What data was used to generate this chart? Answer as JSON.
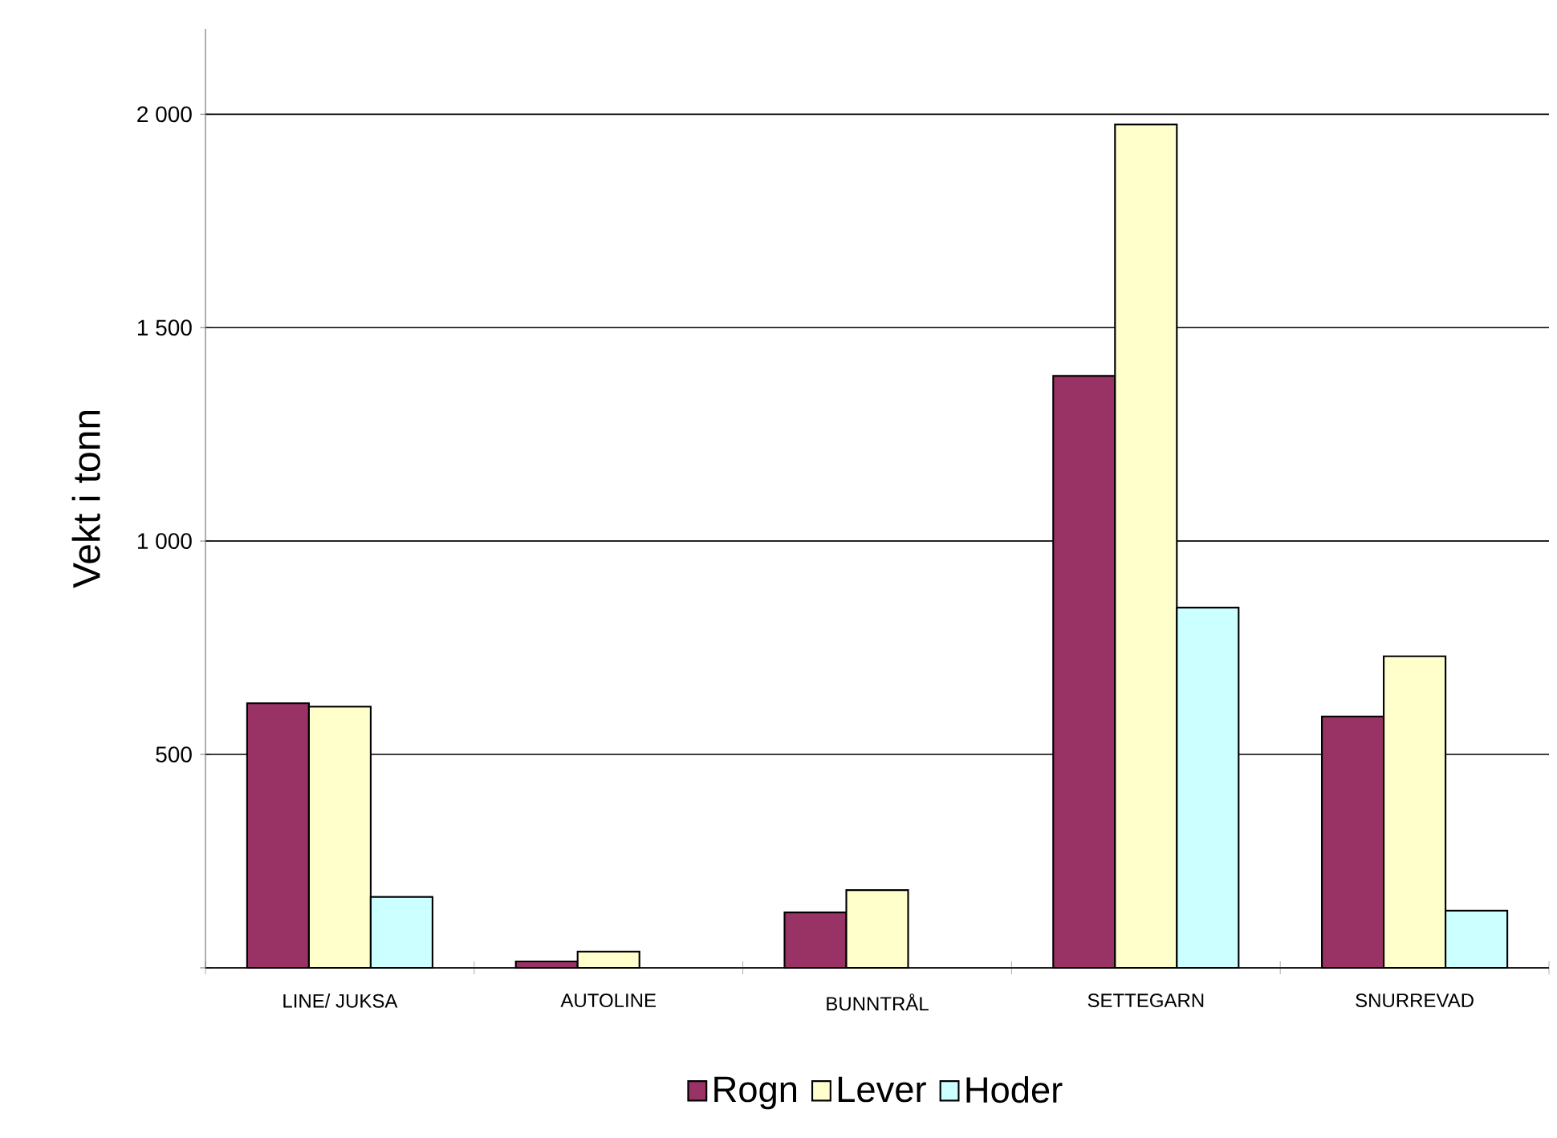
{
  "chart_data": {
    "type": "bar",
    "ylabel": "Vekt i tonn",
    "categories": [
      "LINE/ JUKSA",
      "AUTOLINE",
      "BUNNTRÅL",
      "SETTEGARN",
      "SNURREVAD"
    ],
    "series": [
      {
        "name": "Rogn",
        "color": "#993366",
        "values": [
          620,
          15,
          130,
          1387,
          589
        ]
      },
      {
        "name": "Lever",
        "color": "#ffffcc",
        "values": [
          612,
          38,
          182,
          1976,
          730
        ]
      },
      {
        "name": "Hoder",
        "color": "#ccffff",
        "values": [
          166,
          null,
          null,
          844,
          134
        ]
      }
    ],
    "ylim": [
      0,
      2200
    ],
    "yticks": [
      {
        "value": 0,
        "label": null
      },
      "500",
      {
        "value": 1000,
        "label": "1 000"
      },
      {
        "value": 1500,
        "label": "1 500"
      },
      {
        "value": 2000,
        "label": "2 000"
      }
    ],
    "grid": "y",
    "legend": "bottom"
  }
}
